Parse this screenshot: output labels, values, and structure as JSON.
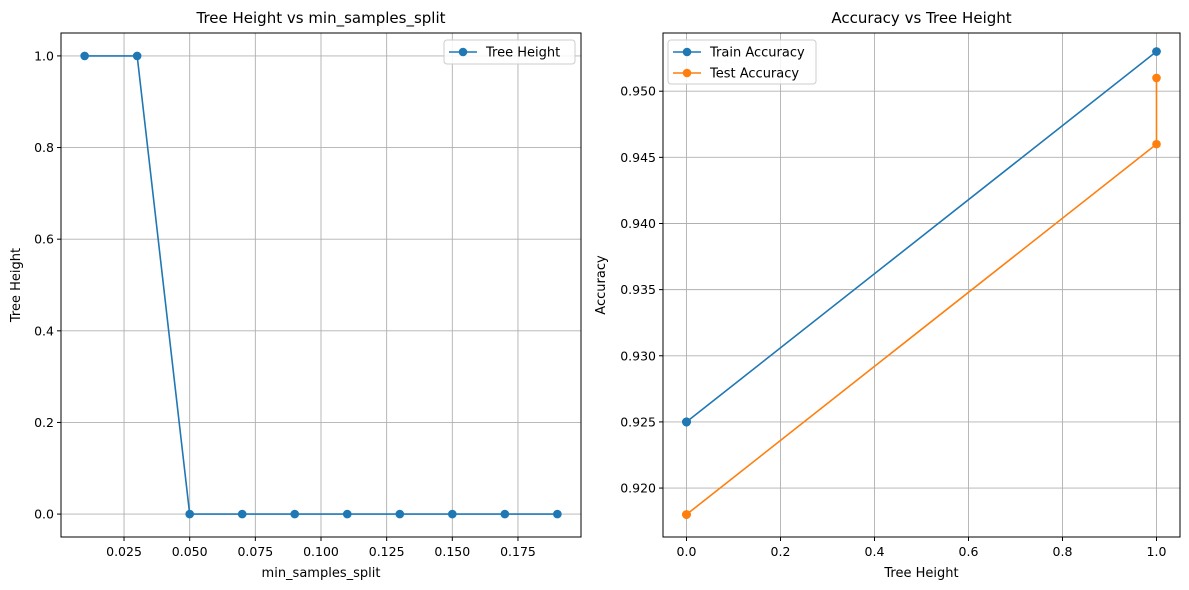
{
  "chart_data": [
    {
      "type": "line",
      "title": "Tree Height vs min_samples_split",
      "xlabel": "min_samples_split",
      "ylabel": "Tree Height",
      "xlim": [
        0.001,
        0.199
      ],
      "ylim": [
        -0.05,
        1.05
      ],
      "xticks": [
        0.025,
        0.05,
        0.075,
        0.1,
        0.125,
        0.15,
        0.175
      ],
      "xtick_labels": [
        "0.025",
        "0.050",
        "0.075",
        "0.100",
        "0.125",
        "0.150",
        "0.175"
      ],
      "yticks": [
        0.0,
        0.2,
        0.4,
        0.6,
        0.8,
        1.0
      ],
      "ytick_labels": [
        "0.0",
        "0.2",
        "0.4",
        "0.6",
        "0.8",
        "1.0"
      ],
      "grid": true,
      "legend_position": "top-right",
      "series": [
        {
          "name": "Tree Height",
          "color": "#1f77b4",
          "x": [
            0.01,
            0.03,
            0.05,
            0.07,
            0.09,
            0.11,
            0.13,
            0.15,
            0.17,
            0.19
          ],
          "y": [
            1,
            1,
            0,
            0,
            0,
            0,
            0,
            0,
            0,
            0
          ]
        }
      ]
    },
    {
      "type": "line",
      "title": "Accuracy vs Tree Height",
      "xlabel": "Tree Height",
      "ylabel": "Accuracy",
      "xlim": [
        -0.05,
        1.05
      ],
      "ylim": [
        0.9163,
        0.9544
      ],
      "xticks": [
        0.0,
        0.2,
        0.4,
        0.6,
        0.8,
        1.0
      ],
      "xtick_labels": [
        "0.0",
        "0.2",
        "0.4",
        "0.6",
        "0.8",
        "1.0"
      ],
      "yticks": [
        0.92,
        0.925,
        0.93,
        0.935,
        0.94,
        0.945,
        0.95
      ],
      "ytick_labels": [
        "0.920",
        "0.925",
        "0.930",
        "0.935",
        "0.940",
        "0.945",
        "0.950"
      ],
      "grid": true,
      "legend_position": "top-left",
      "series": [
        {
          "name": "Train Accuracy",
          "color": "#1f77b4",
          "x": [
            1,
            1,
            0,
            0,
            0,
            0,
            0,
            0,
            0,
            0
          ],
          "y": [
            0.953,
            0.953,
            0.925,
            0.925,
            0.925,
            0.925,
            0.925,
            0.925,
            0.925,
            0.925
          ]
        },
        {
          "name": "Test Accuracy",
          "color": "#ff7f0e",
          "x": [
            1,
            1,
            0,
            0,
            0,
            0,
            0,
            0,
            0,
            0
          ],
          "y": [
            0.951,
            0.946,
            0.918,
            0.918,
            0.918,
            0.918,
            0.918,
            0.918,
            0.918,
            0.918
          ]
        }
      ]
    }
  ]
}
